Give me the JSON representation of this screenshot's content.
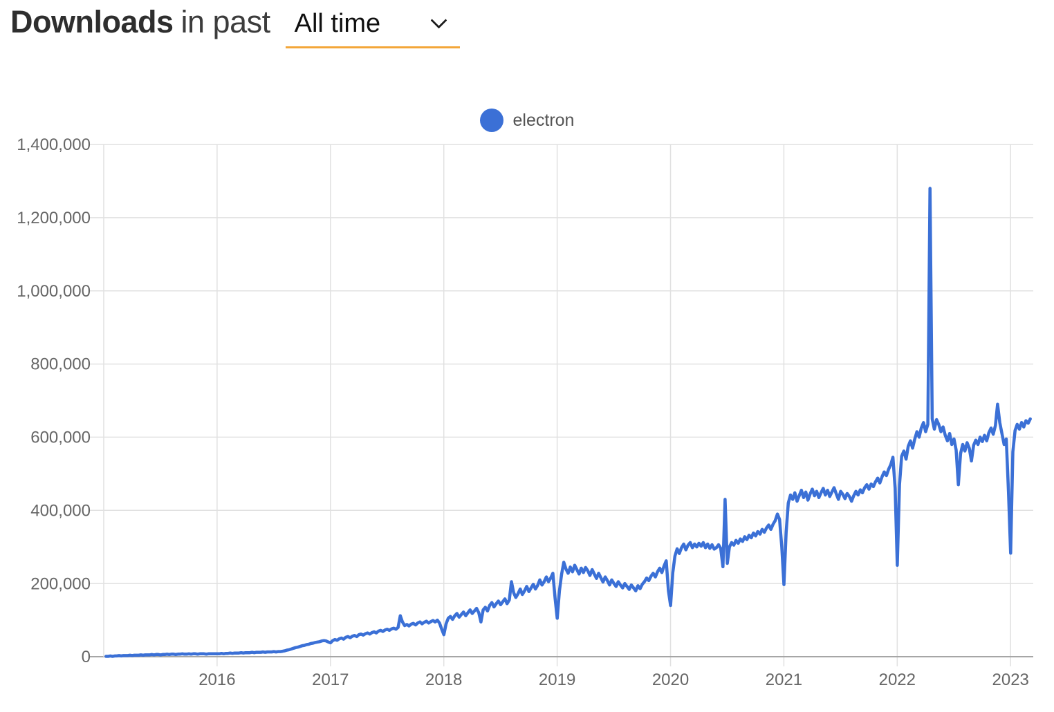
{
  "header": {
    "title_bold": "Downloads",
    "title_rest": "in past",
    "select_value": "All time"
  },
  "legend": {
    "label": "electron"
  },
  "colors": {
    "series": "#3b70d6",
    "select_underline": "#f3a639",
    "grid": "#e1e1e1",
    "axis": "#a6a6a6",
    "tick_text": "#666666",
    "legend_text": "#545454",
    "title_text": "#2e2e2e"
  },
  "chart_data": {
    "type": "line",
    "title": "Downloads in past All time",
    "xlabel": "",
    "ylabel": "",
    "grid": true,
    "legend_position": "top-center",
    "xlim": [
      2015.0,
      2023.2
    ],
    "ylim": [
      0,
      1400000
    ],
    "x_ticks": [
      {
        "year": 2016,
        "label": "2016"
      },
      {
        "year": 2017,
        "label": "2017"
      },
      {
        "year": 2018,
        "label": "2018"
      },
      {
        "year": 2019,
        "label": "2019"
      },
      {
        "year": 2020,
        "label": "2020"
      },
      {
        "year": 2021,
        "label": "2021"
      },
      {
        "year": 2022,
        "label": "2022"
      },
      {
        "year": 2023,
        "label": "2023"
      }
    ],
    "y_ticks": [
      {
        "value": 0,
        "label": "0"
      },
      {
        "value": 200000,
        "label": "200,000"
      },
      {
        "value": 400000,
        "label": "400,000"
      },
      {
        "value": 600000,
        "label": "600,000"
      },
      {
        "value": 800000,
        "label": "800,000"
      },
      {
        "value": 1000000,
        "label": "1,000,000"
      },
      {
        "value": 1200000,
        "label": "1,200,000"
      },
      {
        "value": 1400000,
        "label": "1,400,000"
      }
    ],
    "series": [
      {
        "name": "electron",
        "color": "#3b70d6",
        "x_start_year": 2015.02,
        "x_step_years": 0.0192308,
        "unit_multiplier": 1000,
        "values_thousands": [
          1,
          1,
          2,
          1,
          2,
          2,
          3,
          2,
          3,
          3,
          3,
          4,
          3,
          4,
          4,
          4,
          5,
          4,
          5,
          5,
          5,
          6,
          5,
          6,
          6,
          5,
          6,
          6,
          7,
          6,
          7,
          7,
          6,
          7,
          7,
          8,
          7,
          7,
          8,
          7,
          8,
          8,
          7,
          8,
          8,
          8,
          7,
          8,
          8,
          8,
          8,
          8,
          8,
          9,
          8,
          9,
          9,
          10,
          9,
          10,
          10,
          10,
          11,
          10,
          11,
          11,
          11,
          12,
          11,
          12,
          12,
          12,
          13,
          12,
          13,
          13,
          13,
          14,
          13,
          14,
          14,
          15,
          16,
          18,
          19,
          21,
          23,
          25,
          26,
          28,
          30,
          31,
          33,
          34,
          36,
          37,
          39,
          40,
          41,
          43,
          44,
          43,
          40,
          38,
          44,
          47,
          45,
          49,
          51,
          48,
          53,
          55,
          52,
          56,
          58,
          55,
          60,
          62,
          59,
          63,
          65,
          62,
          66,
          68,
          65,
          70,
          72,
          69,
          73,
          75,
          72,
          76,
          78,
          75,
          80,
          112,
          95,
          85,
          88,
          84,
          89,
          91,
          87,
          92,
          95,
          90,
          94,
          97,
          92,
          96,
          99,
          95,
          100,
          92,
          75,
          60,
          90,
          105,
          110,
          102,
          112,
          118,
          108,
          115,
          122,
          112,
          120,
          128,
          118,
          125,
          132,
          120,
          95,
          128,
          135,
          125,
          140,
          148,
          136,
          145,
          152,
          142,
          150,
          158,
          145,
          155,
          205,
          175,
          162,
          172,
          185,
          170,
          180,
          192,
          178,
          188,
          198,
          185,
          195,
          210,
          196,
          205,
          218,
          205,
          215,
          228,
          160,
          105,
          180,
          225,
          258,
          240,
          228,
          245,
          232,
          250,
          238,
          226,
          242,
          230,
          244,
          235,
          222,
          238,
          226,
          214,
          228,
          216,
          204,
          218,
          208,
          196,
          210,
          200,
          192,
          205,
          196,
          188,
          200,
          192,
          184,
          196,
          188,
          180,
          194,
          186,
          198,
          205,
          215,
          208,
          220,
          228,
          218,
          232,
          242,
          230,
          248,
          262,
          180,
          140,
          230,
          275,
          295,
          282,
          298,
          308,
          292,
          305,
          312,
          298,
          308,
          300,
          310,
          302,
          312,
          298,
          308,
          296,
          306,
          294,
          298,
          306,
          296,
          246,
          430,
          255,
          300,
          312,
          305,
          318,
          310,
          322,
          315,
          328,
          320,
          332,
          325,
          338,
          330,
          342,
          335,
          348,
          340,
          352,
          360,
          348,
          362,
          372,
          390,
          375,
          300,
          197,
          340,
          420,
          442,
          430,
          448,
          425,
          440,
          455,
          435,
          450,
          428,
          445,
          458,
          440,
          452,
          435,
          448,
          460,
          442,
          455,
          438,
          450,
          462,
          445,
          430,
          452,
          444,
          432,
          446,
          438,
          425,
          440,
          452,
          442,
          456,
          448,
          462,
          470,
          458,
          472,
          465,
          478,
          488,
          475,
          492,
          505,
          495,
          512,
          525,
          545,
          460,
          250,
          470,
          548,
          562,
          540,
          575,
          590,
          570,
          595,
          615,
          600,
          625,
          640,
          615,
          635,
          1280,
          650,
          622,
          648,
          635,
          615,
          628,
          605,
          590,
          610,
          580,
          595,
          565,
          470,
          555,
          580,
          562,
          585,
          570,
          535,
          578,
          592,
          580,
          600,
          588,
          605,
          590,
          612,
          625,
          608,
          632,
          690,
          640,
          610,
          580,
          595,
          450,
          283,
          560,
          618,
          635,
          622,
          640,
          628,
          645,
          638,
          650
        ]
      }
    ]
  }
}
